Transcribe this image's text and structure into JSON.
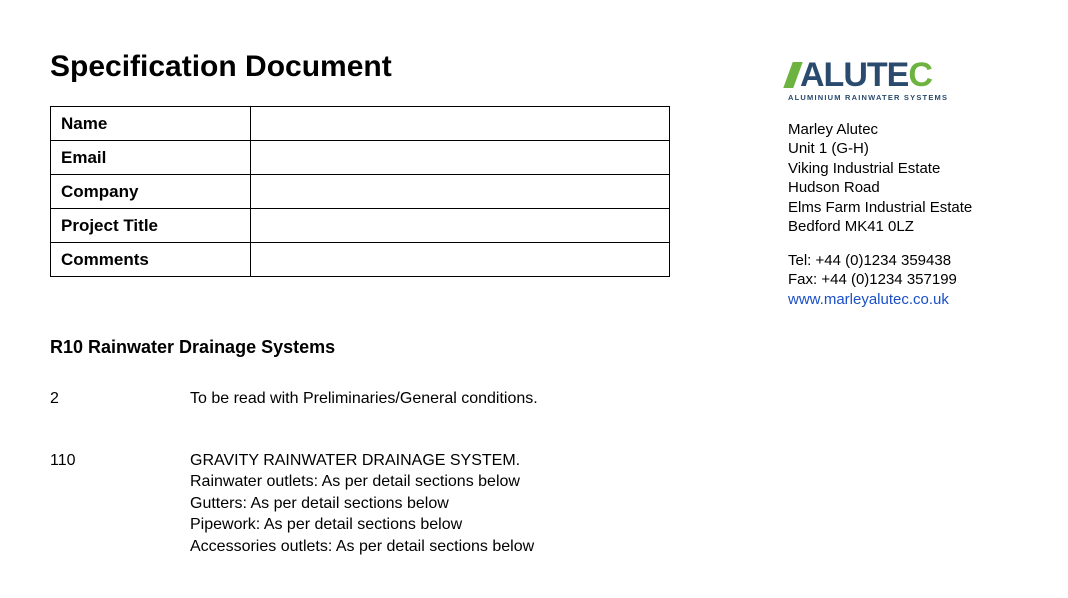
{
  "document": {
    "title": "Specification Document",
    "info_rows": [
      {
        "label": "Name",
        "value": ""
      },
      {
        "label": "Email",
        "value": ""
      },
      {
        "label": "Company",
        "value": ""
      },
      {
        "label": "Project Title",
        "value": ""
      },
      {
        "label": "Comments",
        "value": ""
      }
    ],
    "section_heading": "R10 Rainwater Drainage Systems",
    "spec_items": [
      {
        "number": "2",
        "lines": [
          "To be read with Preliminaries/General conditions."
        ]
      },
      {
        "number": "110",
        "lines": [
          "GRAVITY RAINWATER DRAINAGE SYSTEM.",
          "Rainwater outlets: As per detail sections below",
          "Gutters: As per detail sections below",
          "Pipework: As per detail sections below",
          "Accessories outlets: As per detail sections below"
        ]
      }
    ]
  },
  "company": {
    "logo": {
      "text_blue": "ALUTE",
      "text_green": "C",
      "tagline": "ALUMINIUM RAINWATER SYSTEMS",
      "blue_color": "#2a4a6e",
      "green_color": "#6db33f"
    },
    "address_lines": [
      "Marley Alutec",
      "Unit 1 (G-H)",
      "Viking Industrial Estate",
      "Hudson Road",
      "Elms Farm Industrial Estate",
      "Bedford MK41 0LZ"
    ],
    "tel": "Tel: +44 (0)1234 359438",
    "fax": "Fax: +44 (0)1234 357199",
    "website": "www.marleyalutec.co.uk"
  },
  "style": {
    "page_bg": "#ffffff",
    "text_color": "#000000",
    "link_color": "#1a4fc7",
    "title_fontsize": 30,
    "body_fontsize": 16,
    "table_border_color": "#000000"
  }
}
